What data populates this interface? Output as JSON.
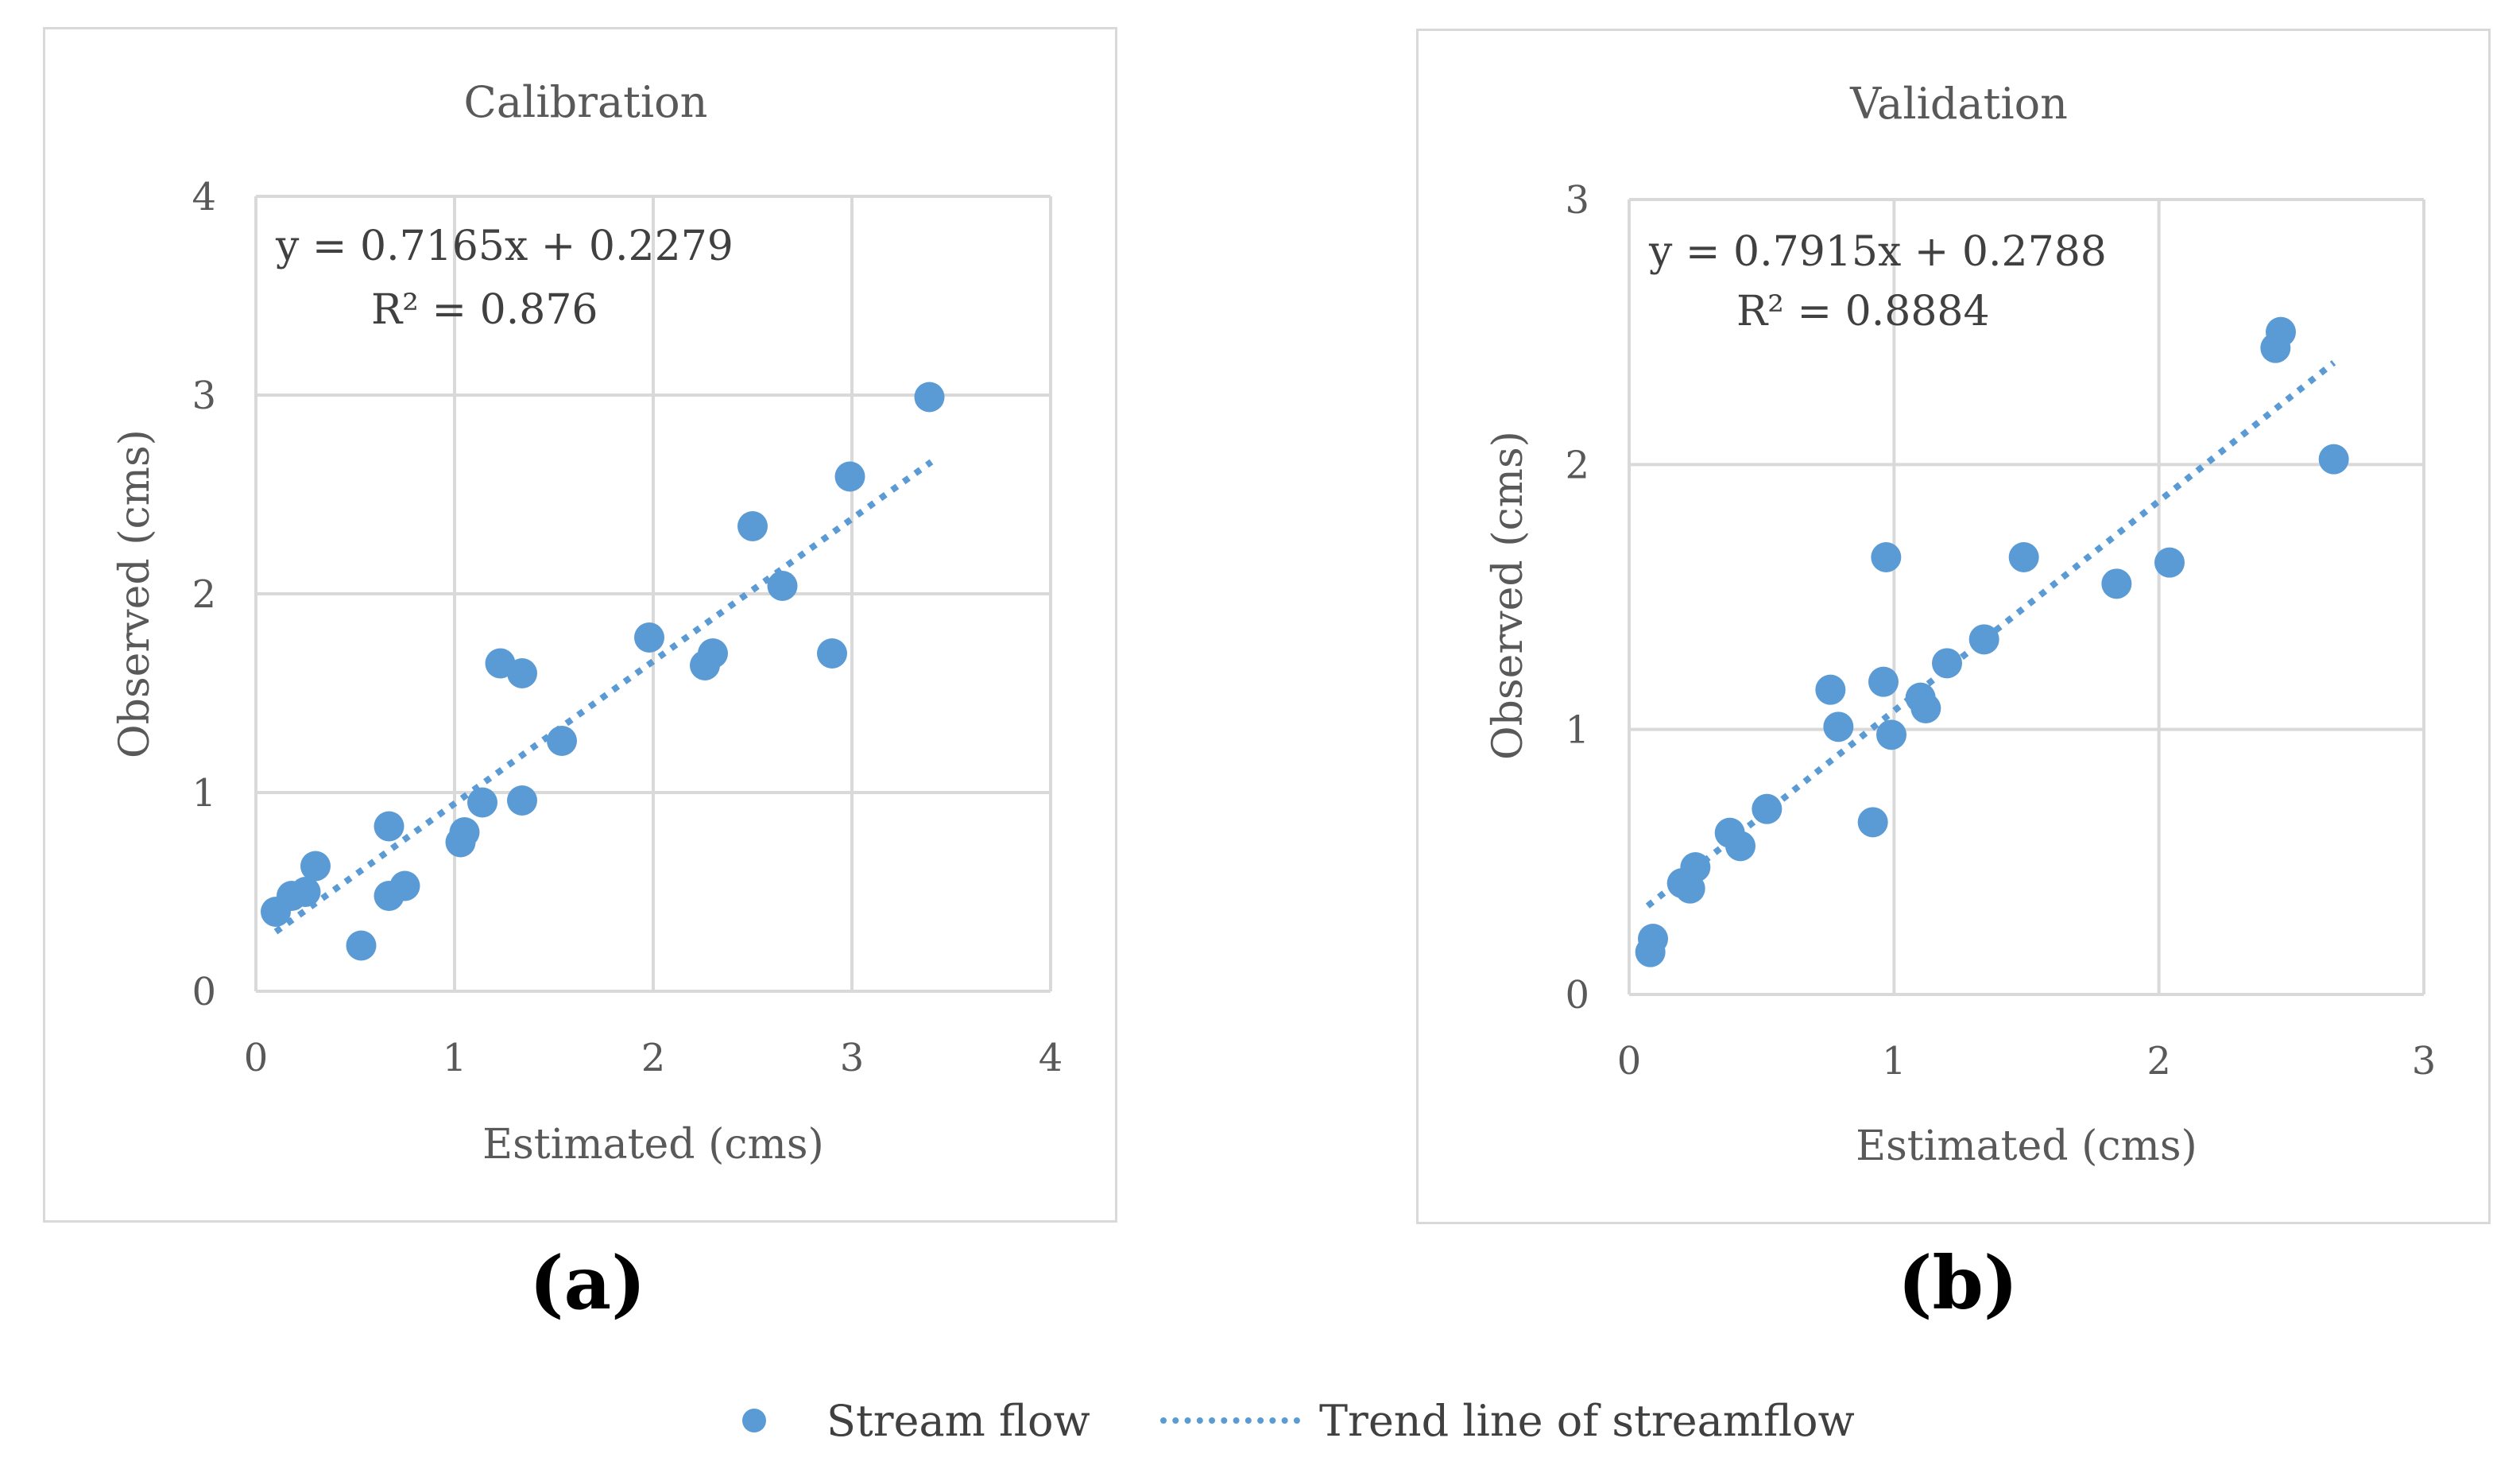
{
  "chart_data": [
    {
      "type": "scatter",
      "panel": "a",
      "title": "Calibration",
      "xlabel": "Estimated (cms)",
      "ylabel": "Observed (cms)",
      "xlim": [
        0,
        4
      ],
      "ylim": [
        0,
        4
      ],
      "xticks": [
        "0",
        "1",
        "2",
        "3",
        "4"
      ],
      "yticks": [
        "0",
        "1",
        "2",
        "3",
        "4"
      ],
      "grid": true,
      "equation": "y = 0.7165x + 0.2279",
      "r_squared": "R² = 0.876",
      "trend": {
        "slope": 0.7165,
        "intercept": 0.2279,
        "x_range": [
          0.1,
          3.4
        ]
      },
      "series": [
        {
          "name": "Stream flow",
          "points": [
            [
              0.1,
              0.4
            ],
            [
              0.18,
              0.48
            ],
            [
              0.25,
              0.5
            ],
            [
              0.3,
              0.63
            ],
            [
              0.53,
              0.23
            ],
            [
              0.67,
              0.83
            ],
            [
              0.67,
              0.48
            ],
            [
              0.75,
              0.53
            ],
            [
              1.03,
              0.75
            ],
            [
              1.05,
              0.8
            ],
            [
              1.14,
              0.95
            ],
            [
              1.23,
              1.65
            ],
            [
              1.34,
              1.6
            ],
            [
              1.34,
              0.96
            ],
            [
              1.54,
              1.26
            ],
            [
              1.98,
              1.78
            ],
            [
              2.26,
              1.64
            ],
            [
              2.3,
              1.7
            ],
            [
              2.5,
              2.34
            ],
            [
              2.65,
              2.04
            ],
            [
              2.9,
              1.7
            ],
            [
              2.99,
              2.59
            ],
            [
              3.39,
              2.99
            ]
          ]
        }
      ]
    },
    {
      "type": "scatter",
      "panel": "b",
      "title": "Validation",
      "xlabel": "Estimated (cms)",
      "ylabel": "Observed (cms)",
      "xlim": [
        0,
        3
      ],
      "ylim": [
        0,
        3
      ],
      "xticks": [
        "0",
        "1",
        "2",
        "3"
      ],
      "yticks": [
        "0",
        "1",
        "2",
        "3"
      ],
      "grid": true,
      "equation": "y = 0.7915x + 0.2788",
      "r_squared": "R² = 0.8884",
      "trend": {
        "slope": 0.7915,
        "intercept": 0.2788,
        "x_range": [
          0.07,
          2.66
        ]
      },
      "series": [
        {
          "name": "Stream flow",
          "points": [
            [
              0.08,
              0.16
            ],
            [
              0.09,
              0.21
            ],
            [
              0.2,
              0.42
            ],
            [
              0.23,
              0.4
            ],
            [
              0.25,
              0.48
            ],
            [
              0.38,
              0.61
            ],
            [
              0.42,
              0.56
            ],
            [
              0.52,
              0.7
            ],
            [
              0.76,
              1.15
            ],
            [
              0.79,
              1.01
            ],
            [
              0.92,
              0.65
            ],
            [
              0.96,
              1.18
            ],
            [
              0.97,
              1.65
            ],
            [
              0.99,
              0.98
            ],
            [
              1.1,
              1.12
            ],
            [
              1.12,
              1.08
            ],
            [
              1.2,
              1.25
            ],
            [
              1.34,
              1.34
            ],
            [
              1.49,
              1.65
            ],
            [
              1.84,
              1.55
            ],
            [
              2.04,
              1.63
            ],
            [
              2.44,
              2.44
            ],
            [
              2.46,
              2.5
            ],
            [
              2.66,
              2.02
            ]
          ]
        }
      ]
    }
  ],
  "captions": {
    "a": "(a)",
    "b": "(b)"
  },
  "legend": {
    "stream_flow": "Stream flow",
    "trend_line": "Trend line of streamflow"
  },
  "colors": {
    "marker": "#5b9bd5",
    "grid": "#d9d9d9",
    "text": "#595959"
  }
}
